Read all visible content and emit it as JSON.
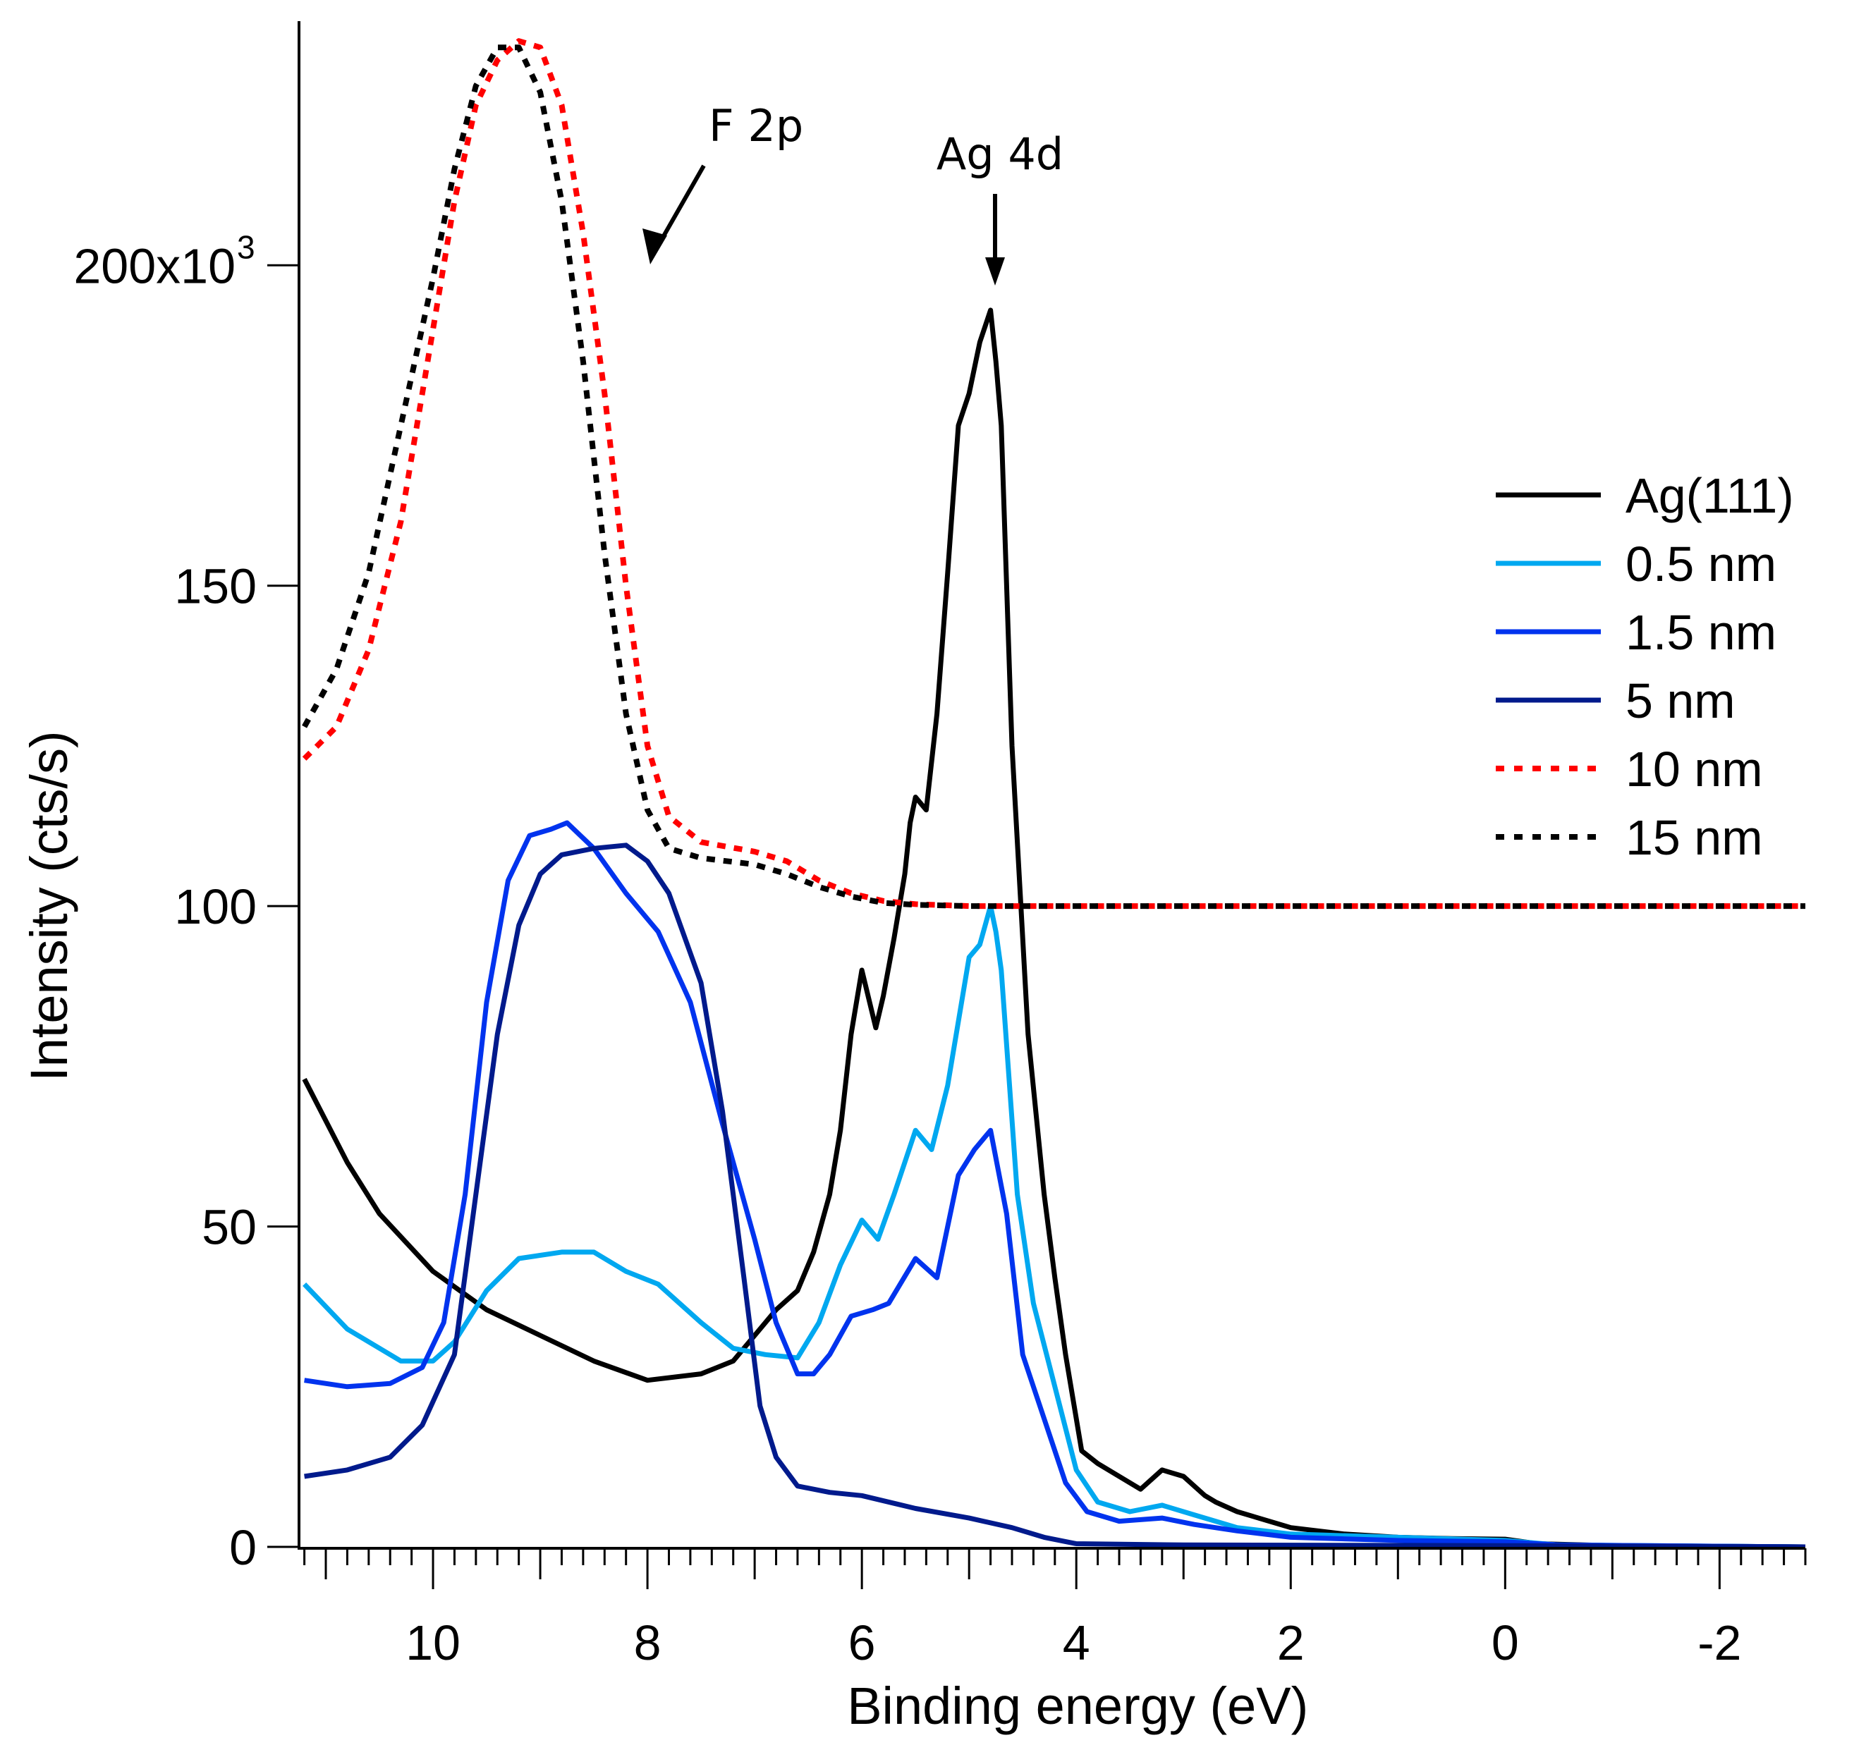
{
  "chart_data": {
    "type": "line",
    "title": "",
    "xlabel": "Binding energy (eV)",
    "ylabel": "Intensity (cts/s)",
    "xlim": [
      11.25,
      -2.8
    ],
    "ylim": [
      0,
      237
    ],
    "x_reversed": true,
    "grid": false,
    "legend_position": "right",
    "x_ticks": [
      10,
      8,
      6,
      4,
      2,
      0,
      -2
    ],
    "x_tick_labels": [
      "10",
      "8",
      "6",
      "4",
      "2",
      "0",
      "-2"
    ],
    "y_ticks": [
      0,
      50,
      100,
      150,
      200
    ],
    "y_tick_labels": [
      "0",
      "50",
      "100",
      "150",
      "200x10"
    ],
    "y_tick_exponent": "3",
    "y_units_scale": 1000,
    "annotations": [
      {
        "text": "F 2p",
        "x": 7.6,
        "y": 225
      },
      {
        "text": "Ag 4d",
        "x": 4.8,
        "y": 218
      }
    ],
    "series": [
      {
        "name": "Ag(111)",
        "color": "#000000",
        "style": "solid",
        "x": [
          11.2,
          10.8,
          10.5,
          10.0,
          9.5,
          9.0,
          8.5,
          8.0,
          7.5,
          7.2,
          7.0,
          6.8,
          6.6,
          6.45,
          6.3,
          6.2,
          6.1,
          6.0,
          5.87,
          5.8,
          5.7,
          5.6,
          5.55,
          5.5,
          5.4,
          5.3,
          5.2,
          5.1,
          5.0,
          4.9,
          4.8,
          4.75,
          4.7,
          4.6,
          4.5,
          4.45,
          4.3,
          4.2,
          4.1,
          3.95,
          3.8,
          3.6,
          3.4,
          3.2,
          3.0,
          2.8,
          2.7,
          2.5,
          2.0,
          1.5,
          1.0,
          0.5,
          0.0,
          -0.3,
          -1.0,
          -2.0,
          -2.8
        ],
        "y": [
          73,
          60,
          52,
          43,
          37,
          33,
          29,
          26,
          27,
          29,
          33,
          37,
          40,
          46,
          55,
          65,
          80,
          90,
          81,
          86,
          95,
          105,
          113,
          117,
          115,
          130,
          152,
          175,
          180,
          188,
          193,
          185,
          175,
          125,
          95,
          80,
          55,
          42,
          30,
          15,
          13,
          11,
          9,
          12,
          11,
          8,
          7,
          5.5,
          3,
          2,
          1.5,
          1.3,
          1.2,
          0.5,
          0.2,
          0.1,
          0
        ]
      },
      {
        "name": "0.5 nm",
        "color": "#00a8f0",
        "style": "solid",
        "x": [
          11.2,
          10.8,
          10.3,
          10.0,
          9.8,
          9.5,
          9.2,
          8.8,
          8.5,
          8.2,
          7.9,
          7.5,
          7.2,
          6.9,
          6.6,
          6.4,
          6.2,
          6.0,
          5.85,
          5.7,
          5.5,
          5.35,
          5.2,
          5.0,
          4.9,
          4.8,
          4.75,
          4.7,
          4.55,
          4.4,
          4.2,
          4.0,
          3.8,
          3.5,
          3.2,
          2.9,
          2.5,
          2.0,
          1.0,
          0.0,
          -0.5,
          -2.8
        ],
        "y": [
          41,
          34,
          29,
          29,
          32,
          40,
          45,
          46,
          46,
          43,
          41,
          35,
          31,
          30,
          29.5,
          35,
          44,
          51,
          48,
          55,
          65,
          62,
          72,
          92,
          94,
          100,
          96,
          90,
          55,
          38,
          25,
          12,
          7,
          5.5,
          6.5,
          5,
          3,
          2,
          1.5,
          1,
          0.3,
          0
        ]
      },
      {
        "name": "1.5 nm",
        "color": "#0033ee",
        "style": "solid",
        "x": [
          11.2,
          10.8,
          10.4,
          10.1,
          9.9,
          9.7,
          9.5,
          9.3,
          9.1,
          8.9,
          8.75,
          8.5,
          8.2,
          7.9,
          7.6,
          7.3,
          7.0,
          6.8,
          6.6,
          6.45,
          6.3,
          6.1,
          5.9,
          5.75,
          5.5,
          5.3,
          5.1,
          4.95,
          4.8,
          4.65,
          4.5,
          4.3,
          4.1,
          3.9,
          3.6,
          3.2,
          2.9,
          2.5,
          2.0,
          1.0,
          0.0,
          -0.5,
          -2.8
        ],
        "y": [
          26,
          25,
          25.5,
          28,
          35,
          55,
          85,
          104,
          111,
          112,
          113,
          109,
          102,
          96,
          85,
          66,
          48,
          35,
          27,
          27,
          30,
          36,
          37,
          38,
          45,
          42,
          58,
          62,
          65,
          52,
          30,
          20,
          10,
          5.5,
          4,
          4.5,
          3.5,
          2.5,
          1.5,
          1,
          0.8,
          0.3,
          0
        ]
      },
      {
        "name": "5 nm",
        "color": "#001a8c",
        "style": "solid",
        "x": [
          11.2,
          10.8,
          10.4,
          10.1,
          9.8,
          9.6,
          9.4,
          9.2,
          9.0,
          8.8,
          8.5,
          8.2,
          8.0,
          7.8,
          7.5,
          7.3,
          7.1,
          6.95,
          6.8,
          6.6,
          6.3,
          6.0,
          5.5,
          5.0,
          4.6,
          4.3,
          4.0,
          3.0,
          0.0,
          -2.8
        ],
        "y": [
          11,
          12,
          14,
          19,
          30,
          55,
          80,
          97,
          105,
          108,
          109,
          109.5,
          107,
          102,
          88,
          68,
          42,
          22,
          14,
          9.5,
          8.5,
          8,
          6,
          4.5,
          3,
          1.5,
          0.5,
          0.3,
          0.2,
          0
        ]
      },
      {
        "name": "10 nm",
        "color": "#ff0000",
        "style": "dashed",
        "x": [
          11.2,
          10.9,
          10.6,
          10.3,
          10.0,
          9.8,
          9.6,
          9.4,
          9.2,
          9.0,
          8.8,
          8.6,
          8.4,
          8.2,
          8.0,
          7.8,
          7.5,
          7.0,
          6.7,
          6.4,
          6.1,
          5.8,
          5.5,
          5.0,
          3.0,
          1.0,
          -1.0,
          -2.8
        ],
        "y": [
          123,
          128,
          140,
          160,
          190,
          210,
          225,
          232,
          235,
          234,
          225,
          205,
          180,
          150,
          125,
          114,
          110,
          108.5,
          107,
          104,
          102,
          100.8,
          100.3,
          100,
          100,
          100,
          100,
          100
        ]
      },
      {
        "name": "15 nm",
        "color": "#000000",
        "style": "dashed",
        "x": [
          11.2,
          10.9,
          10.6,
          10.3,
          10.0,
          9.8,
          9.6,
          9.4,
          9.2,
          9.0,
          8.8,
          8.6,
          8.4,
          8.2,
          8.0,
          7.8,
          7.5,
          7.0,
          6.7,
          6.4,
          6.1,
          5.8,
          5.5,
          5.0,
          3.0,
          1.0,
          -1.0,
          -2.8
        ],
        "y": [
          128,
          137,
          152,
          175,
          198,
          215,
          228,
          234,
          234,
          227,
          210,
          185,
          155,
          130,
          115,
          109,
          107.5,
          106.5,
          105,
          103,
          101.5,
          100.5,
          100.2,
          100,
          100,
          100,
          100,
          100
        ]
      }
    ]
  }
}
